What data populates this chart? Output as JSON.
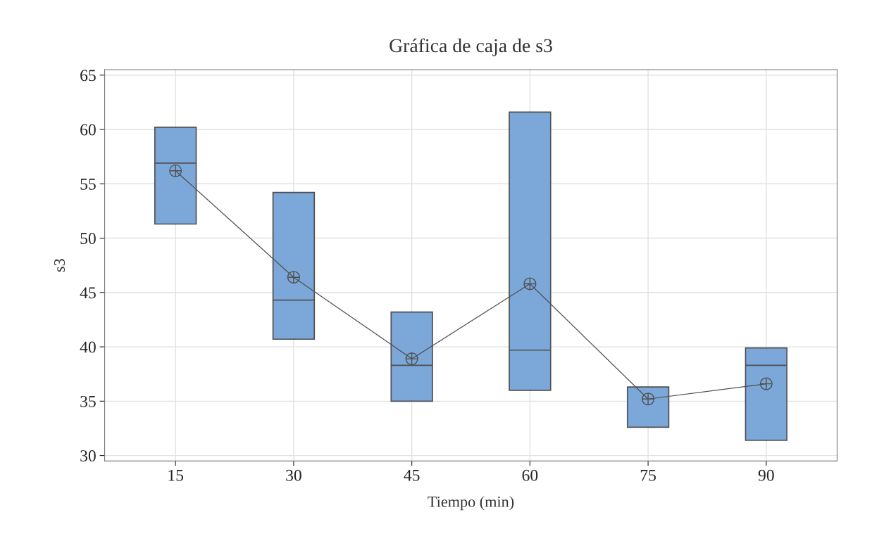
{
  "chart_data": {
    "type": "box",
    "title": "Gráfica de caja de s3",
    "xlabel": "Tiempo (min)",
    "ylabel": "s3",
    "categories": [
      "15",
      "30",
      "45",
      "60",
      "75",
      "90"
    ],
    "boxes": [
      {
        "low": 51.3,
        "q1": 51.3,
        "median": 56.9,
        "q3": 60.2,
        "high": 60.2,
        "mean": 56.2
      },
      {
        "low": 40.7,
        "q1": 40.7,
        "median": 44.3,
        "q3": 54.2,
        "high": 54.2,
        "mean": 46.4
      },
      {
        "low": 35.0,
        "q1": 35.0,
        "median": 38.3,
        "q3": 43.2,
        "high": 43.2,
        "mean": 38.9
      },
      {
        "low": 36.0,
        "q1": 36.0,
        "median": 39.7,
        "q3": 61.6,
        "high": 61.6,
        "mean": 45.8
      },
      {
        "low": 32.6,
        "q1": 32.6,
        "median": 36.3,
        "q3": 36.3,
        "high": 36.3,
        "mean": 35.2
      },
      {
        "low": 31.4,
        "q1": 31.4,
        "median": 38.3,
        "q3": 39.9,
        "high": 39.9,
        "mean": 36.6
      }
    ],
    "color": "#7ba7d9",
    "series": [
      {
        "type": "line",
        "x": [
          "15",
          "30",
          "45",
          "60",
          "75",
          "90"
        ],
        "values": [
          56.2,
          46.4,
          38.9,
          45.8,
          35.2,
          36.6
        ],
        "color": "#505050",
        "marker": "none",
        "line_style": "solid"
      }
    ],
    "ylim": [
      29.5,
      65.5
    ],
    "yticks": [
      30,
      35,
      40,
      45,
      50,
      55,
      60,
      65
    ],
    "grid": true
  }
}
